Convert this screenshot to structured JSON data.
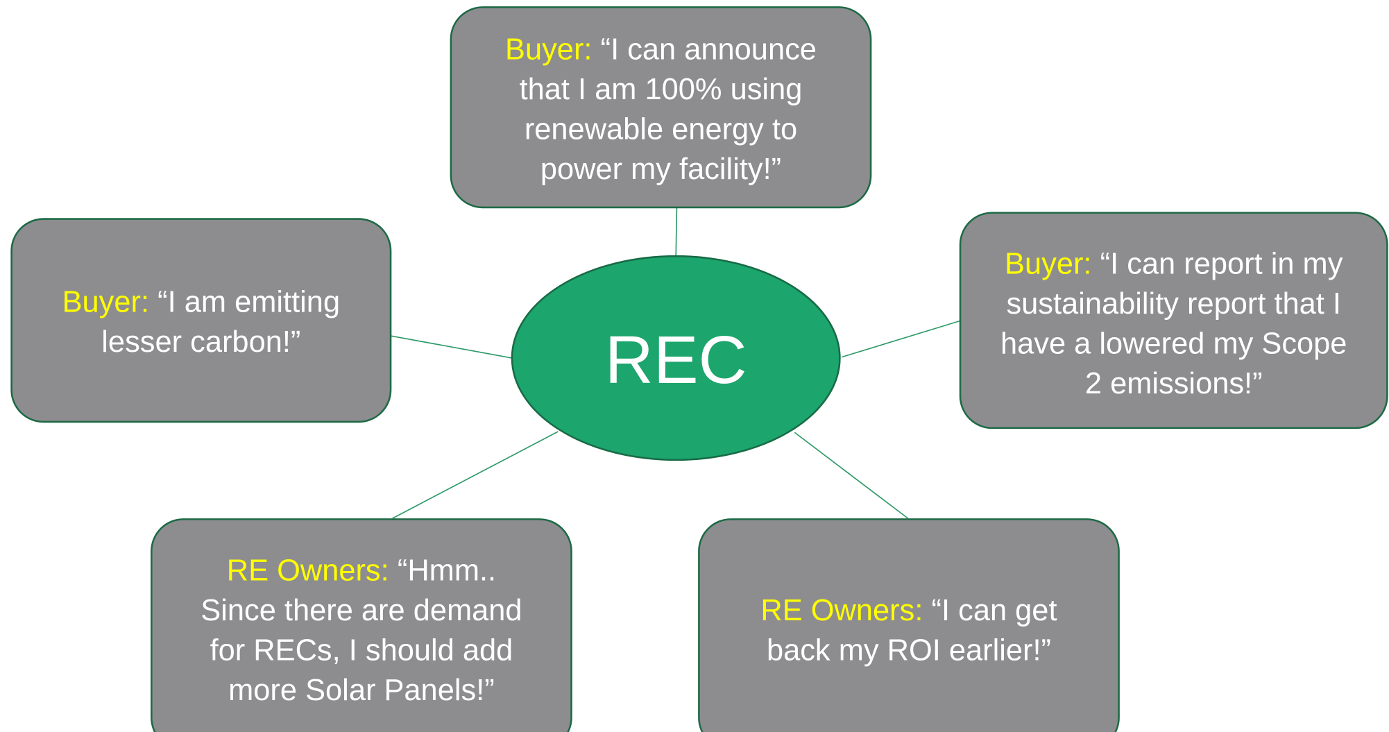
{
  "center": {
    "label": "REC"
  },
  "nodes": [
    {
      "role": "Buyer:",
      "lines": [
        "“I  can announce",
        "that I am 100% using",
        "renewable energy to",
        "power my facility!”"
      ]
    },
    {
      "role": "Buyer:",
      "lines": [
        "“I am emitting",
        "lesser carbon!”"
      ]
    },
    {
      "role": "Buyer:",
      "lines": [
        "“I can report in my",
        "sustainability report that I",
        "have a lowered my Scope",
        "2 emissions!”"
      ]
    },
    {
      "role": "RE Owners:",
      "lines": [
        "“Hmm..",
        "Since there are demand",
        "for RECs, I should add",
        "more Solar Panels!”"
      ]
    },
    {
      "role": "RE Owners:",
      "lines": [
        "“I can get",
        "back my ROI earlier!”"
      ]
    }
  ]
}
